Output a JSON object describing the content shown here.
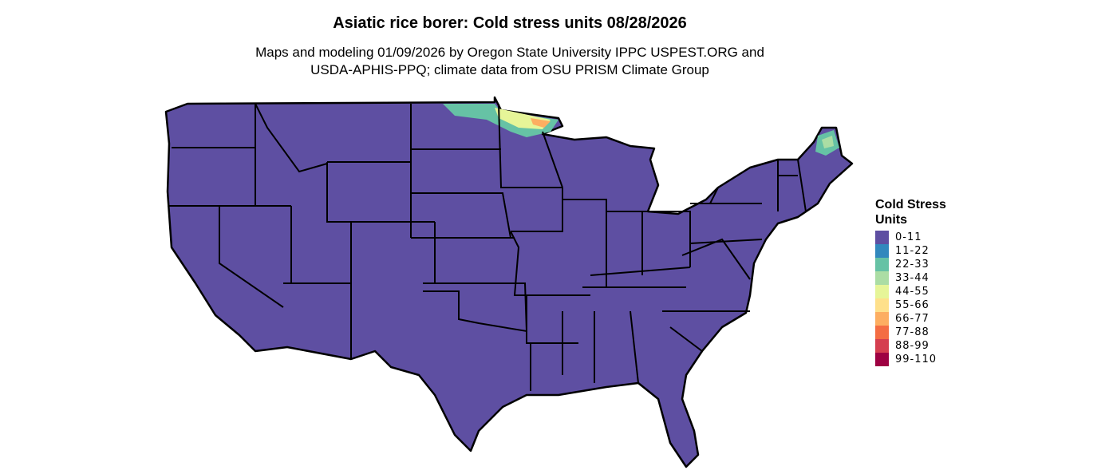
{
  "title": "Asiatic rice borer: Cold stress units 08/28/2026",
  "subtitle_line1": "Maps and modeling 01/09/2026 by Oregon State University IPPC USPEST.ORG and",
  "subtitle_line2": "USDA-APHIS-PPQ; climate data from OSU PRISM Climate Group",
  "map": {
    "region": "Contiguous United States",
    "base_color": "#5E4FA2",
    "border_color": "#000000"
  },
  "legend": {
    "title_line1": "Cold Stress",
    "title_line2": "Units",
    "items": [
      {
        "label": "0-11",
        "color": "#5E4FA2"
      },
      {
        "label": "11-22",
        "color": "#3288BD"
      },
      {
        "label": "22-33",
        "color": "#66C2A5"
      },
      {
        "label": "33-44",
        "color": "#ABDDA4"
      },
      {
        "label": "44-55",
        "color": "#E6F598"
      },
      {
        "label": "55-66",
        "color": "#FEE08B"
      },
      {
        "label": "66-77",
        "color": "#FDAE61"
      },
      {
        "label": "77-88",
        "color": "#F46D43"
      },
      {
        "label": "88-99",
        "color": "#D53E4F"
      },
      {
        "label": "99-110",
        "color": "#9E0142"
      }
    ]
  }
}
